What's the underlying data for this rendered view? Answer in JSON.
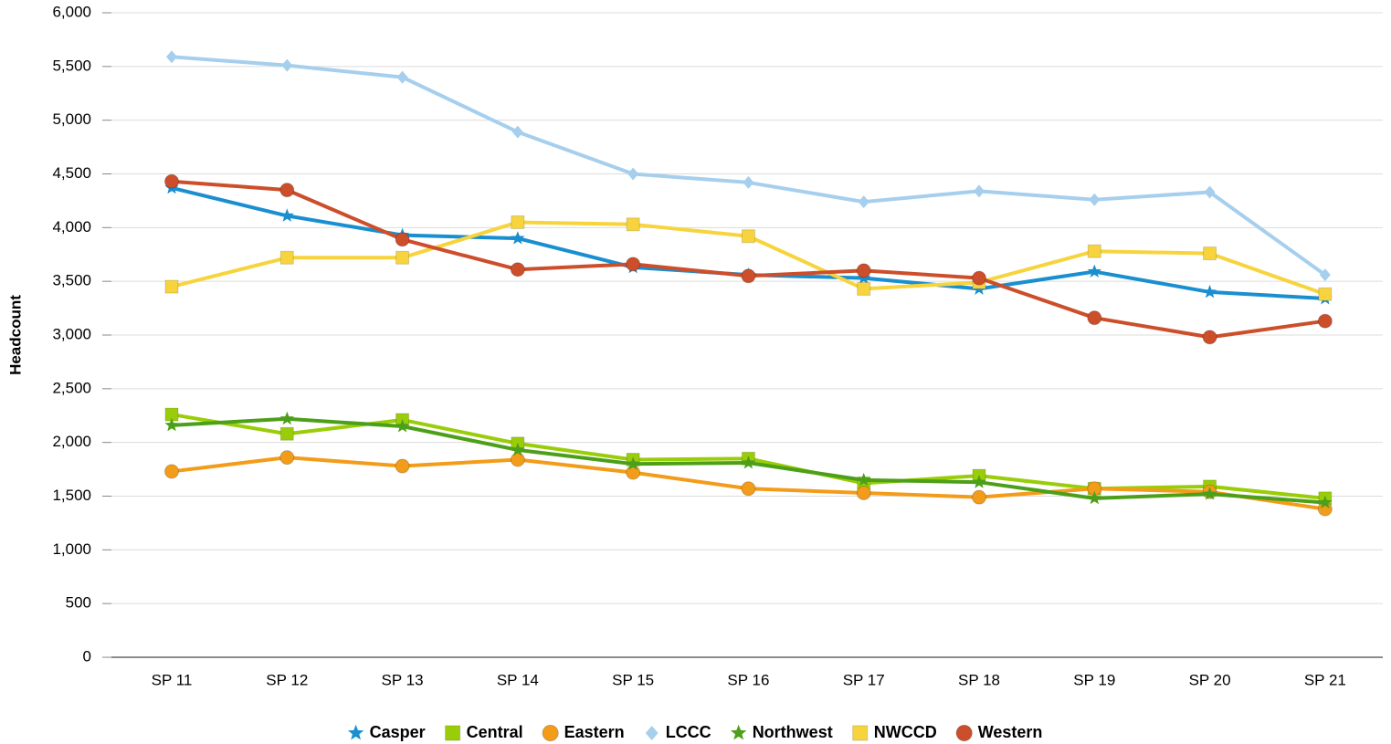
{
  "chart_data": {
    "type": "line",
    "y_label": "Headcount",
    "categories": [
      "SP 11",
      "SP 12",
      "SP 13",
      "SP 14",
      "SP 15",
      "SP 16",
      "SP 17",
      "SP 18",
      "SP 19",
      "SP 20",
      "SP 21"
    ],
    "ylim": [
      0,
      6000
    ],
    "yticks": [
      0,
      500,
      {
        "value": 1000,
        "label": "1,000"
      },
      {
        "value": 1500,
        "label": "1,500"
      },
      {
        "value": 2000,
        "label": "2,000"
      },
      {
        "value": 2500,
        "label": "2,500"
      },
      {
        "value": 3000,
        "label": "3,000"
      },
      {
        "value": 3500,
        "label": "3,500"
      },
      {
        "value": 4000,
        "label": "4,000"
      },
      {
        "value": 4500,
        "label": "4,500"
      },
      {
        "value": 5000,
        "label": "5,000"
      },
      {
        "value": 5500,
        "label": "5,500"
      },
      {
        "value": 6000,
        "label": "6,000"
      }
    ],
    "grid": true,
    "legend": "bottom",
    "series": [
      {
        "name": "Casper",
        "color": "#1a8fd0",
        "marker": "star",
        "values": [
          4370,
          4110,
          3930,
          3900,
          3630,
          3560,
          3530,
          3430,
          3590,
          3400,
          3340
        ]
      },
      {
        "name": "Central",
        "color": "#9acd09",
        "marker": "square",
        "values": [
          2260,
          2080,
          2210,
          1990,
          1840,
          1850,
          1620,
          1690,
          1570,
          1590,
          1480
        ]
      },
      {
        "name": "Eastern",
        "color": "#f39c1a",
        "marker": "circle",
        "values": [
          1730,
          1860,
          1780,
          1840,
          1720,
          1570,
          1530,
          1490,
          1570,
          1540,
          1380
        ]
      },
      {
        "name": "LCCC",
        "color": "#a6cfee",
        "marker": "diamond",
        "values": [
          5590,
          5510,
          5400,
          4890,
          4500,
          4420,
          4240,
          4340,
          4260,
          4330,
          3560
        ]
      },
      {
        "name": "Northwest",
        "color": "#4c9f18",
        "marker": "star",
        "values": [
          2160,
          2220,
          2150,
          1930,
          1800,
          1810,
          1650,
          1630,
          1480,
          1520,
          1440
        ]
      },
      {
        "name": "NWCCD",
        "color": "#f7d43d",
        "marker": "square",
        "values": [
          3450,
          3720,
          3720,
          4050,
          4030,
          3920,
          3430,
          3490,
          3780,
          3760,
          3380
        ]
      },
      {
        "name": "Western",
        "color": "#cc4e2a",
        "marker": "circle",
        "values": [
          4430,
          4350,
          3890,
          3610,
          3660,
          3550,
          3600,
          3530,
          3160,
          2980,
          3130
        ]
      }
    ]
  }
}
